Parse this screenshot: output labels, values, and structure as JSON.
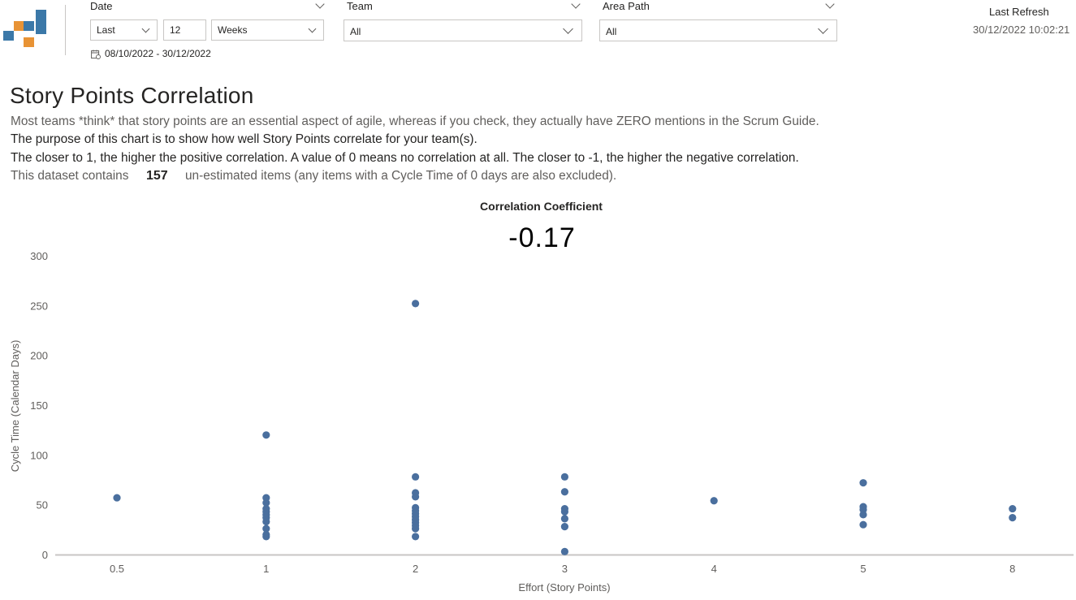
{
  "header": {
    "date_slicer": {
      "title": "Date",
      "relative_option": "Last",
      "amount": "12",
      "unit": "Weeks",
      "range_text": "08/10/2022 - 30/12/2022"
    },
    "team_slicer": {
      "title": "Team",
      "value": "All"
    },
    "area_path_slicer": {
      "title": "Area Path",
      "value": "All"
    },
    "last_refresh": {
      "label": "Last Refresh",
      "value": "30/12/2022 10:02:21"
    }
  },
  "page": {
    "title": "Story Points Correlation",
    "line1": "Most teams *think* that story points are an essential aspect of agile, whereas if you check, they actually have ZERO mentions in the Scrum Guide.",
    "line2": "The purpose of this chart is to show how well Story Points correlate for your team(s).",
    "line3": "The closer to 1, the higher the positive correlation. A value of 0 means no correlation at all. The closer to -1, the higher the negative correlation.",
    "dataset_prefix": "This dataset contains",
    "dataset_count": "157",
    "dataset_suffix": "un-estimated items (any items with a Cycle Time of 0 days are also excluded)."
  },
  "kpi": {
    "label": "Correlation Coefficient",
    "value": "-0.17"
  },
  "colors": {
    "point": "#4a6f9e",
    "axis": "#c8c6c4",
    "logo_blue": "#3b78a8",
    "logo_orange": "#e89335"
  },
  "chart_data": {
    "type": "scatter",
    "xlabel": "Effort (Story Points)",
    "ylabel": "Cycle Time (Calendar Days)",
    "categories": [
      "0.5",
      "1",
      "2",
      "3",
      "4",
      "5",
      "8"
    ],
    "ylim": [
      0,
      300
    ],
    "yticks": [
      0,
      50,
      100,
      150,
      200,
      250,
      300
    ],
    "grid": false,
    "points": [
      {
        "x": "0.5",
        "y": 57
      },
      {
        "x": "1",
        "y": 120
      },
      {
        "x": "1",
        "y": 57
      },
      {
        "x": "1",
        "y": 52
      },
      {
        "x": "1",
        "y": 46
      },
      {
        "x": "1",
        "y": 43
      },
      {
        "x": "1",
        "y": 40
      },
      {
        "x": "1",
        "y": 37
      },
      {
        "x": "1",
        "y": 33
      },
      {
        "x": "1",
        "y": 26
      },
      {
        "x": "1",
        "y": 20
      },
      {
        "x": "1",
        "y": 18
      },
      {
        "x": "2",
        "y": 252
      },
      {
        "x": "2",
        "y": 78
      },
      {
        "x": "2",
        "y": 62
      },
      {
        "x": "2",
        "y": 58
      },
      {
        "x": "2",
        "y": 47
      },
      {
        "x": "2",
        "y": 44
      },
      {
        "x": "2",
        "y": 41
      },
      {
        "x": "2",
        "y": 38
      },
      {
        "x": "2",
        "y": 35
      },
      {
        "x": "2",
        "y": 32
      },
      {
        "x": "2",
        "y": 29
      },
      {
        "x": "2",
        "y": 26
      },
      {
        "x": "2",
        "y": 18
      },
      {
        "x": "3",
        "y": 78
      },
      {
        "x": "3",
        "y": 63
      },
      {
        "x": "3",
        "y": 46
      },
      {
        "x": "3",
        "y": 43
      },
      {
        "x": "3",
        "y": 36
      },
      {
        "x": "3",
        "y": 28
      },
      {
        "x": "3",
        "y": 3
      },
      {
        "x": "4",
        "y": 54
      },
      {
        "x": "5",
        "y": 72
      },
      {
        "x": "5",
        "y": 48
      },
      {
        "x": "5",
        "y": 45
      },
      {
        "x": "5",
        "y": 40
      },
      {
        "x": "5",
        "y": 30
      },
      {
        "x": "8",
        "y": 46
      },
      {
        "x": "8",
        "y": 37
      }
    ]
  }
}
